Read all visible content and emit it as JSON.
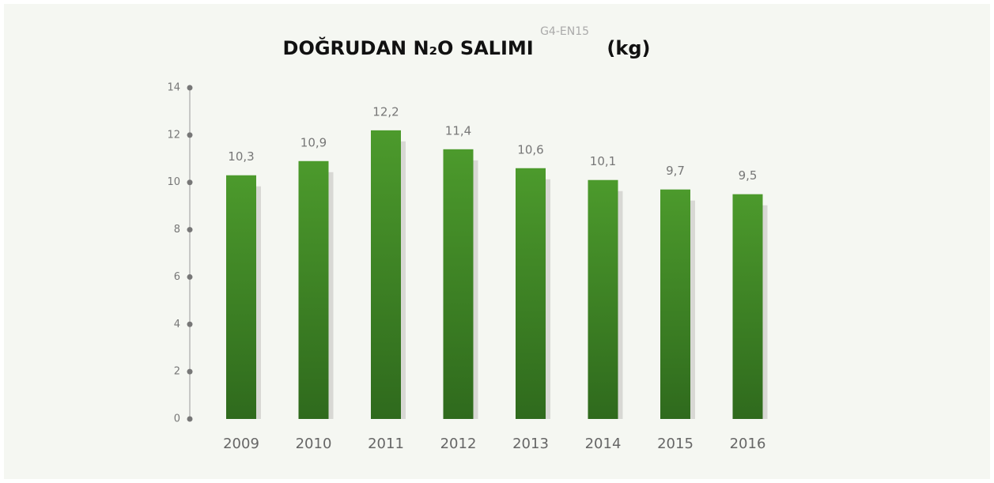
{
  "chart_data": {
    "type": "bar",
    "title": "DOĞRUDAN N₂O SALIMI",
    "title_note": "G4-EN15",
    "unit": "(kg)",
    "categories": [
      "2009",
      "2010",
      "2011",
      "2012",
      "2013",
      "2014",
      "2015",
      "2016"
    ],
    "values": [
      10.3,
      10.9,
      12.2,
      11.4,
      10.6,
      10.1,
      9.7,
      9.5
    ],
    "value_labels": [
      "10,3",
      "10,9",
      "12,2",
      "11,4",
      "10,6",
      "10,1",
      "9,7",
      "9,5"
    ],
    "color": "#3f8a27",
    "ylim": [
      0,
      14
    ],
    "yticks": [
      0,
      2,
      4,
      6,
      8,
      10,
      12,
      14
    ],
    "grid": false
  }
}
